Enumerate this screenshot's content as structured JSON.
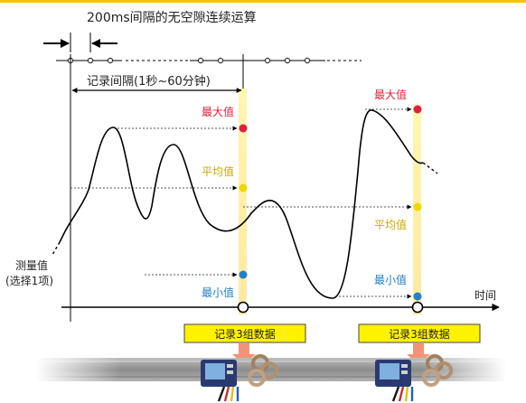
{
  "texts": {
    "sampling_note": "200ms间隔的无空隙连续运算",
    "record_interval": "记录间隔(1秒~60分钟)",
    "measured_value_line1": "测量值",
    "measured_value_line2": "(选择1项)",
    "max_label": "最大值",
    "avg_label": "平均值",
    "min_label": "最小值",
    "time_axis": "时间",
    "record_box": "记录3组数据"
  },
  "colors": {
    "accent": "#f5c400",
    "max": "#e0203c",
    "avg": "#e8c800",
    "min": "#2080c8",
    "max_text": "#e0203c",
    "avg_text": "#c8a800",
    "min_text": "#2080c8",
    "record_box_fill": "#fff200",
    "record_arrow": "#f08060"
  },
  "icons": {
    "logger_device": "data-logger-device-icon",
    "current_clamp": "current-clamp-sensor-icon"
  }
}
